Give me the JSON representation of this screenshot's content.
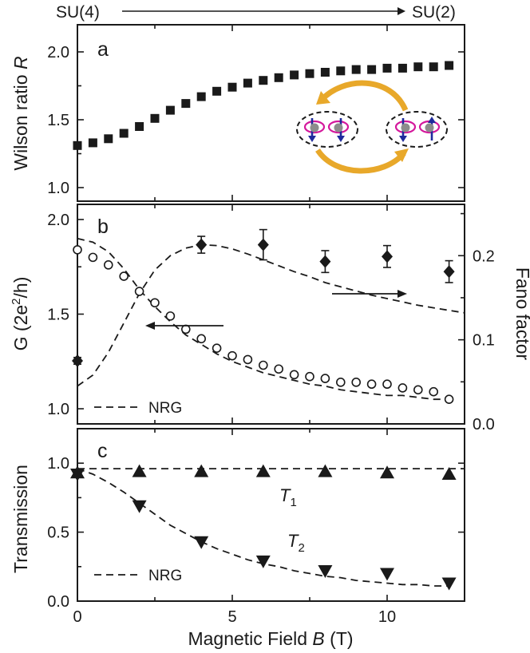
{
  "top_annotation": {
    "left": "SU(4)",
    "right": "SU(2)"
  },
  "colors": {
    "ink": "#1a1a1a",
    "orange": "#e8a82a",
    "magenta": "#d4189c",
    "blue": "#1f2a9c",
    "gray": "#8c8c8c"
  },
  "chart_data": [
    {
      "id": "a",
      "type": "scatter",
      "panel_label": "a",
      "ylabel_text": "Wilson ratio ",
      "ylabel_var": "R",
      "xlim": [
        0,
        12.5
      ],
      "ylim": [
        0.9,
        2.2
      ],
      "yticks": [
        1.0,
        1.5,
        2.0
      ],
      "ytick_labels": [
        "1.0",
        "1.5",
        "2.0"
      ],
      "xticks": [
        0,
        5,
        10
      ],
      "series": [
        {
          "name": "Wilson ratio",
          "marker": "square",
          "x": [
            0.0,
            0.5,
            1.0,
            1.5,
            2.0,
            2.5,
            3.0,
            3.5,
            4.0,
            4.5,
            5.0,
            5.5,
            6.0,
            6.5,
            7.0,
            7.5,
            8.0,
            8.5,
            9.0,
            9.5,
            10.0,
            10.5,
            11.0,
            11.5,
            12.0
          ],
          "y": [
            1.31,
            1.33,
            1.36,
            1.4,
            1.45,
            1.51,
            1.57,
            1.62,
            1.67,
            1.71,
            1.74,
            1.77,
            1.79,
            1.81,
            1.83,
            1.84,
            1.85,
            1.86,
            1.87,
            1.87,
            1.88,
            1.88,
            1.89,
            1.89,
            1.9
          ]
        }
      ]
    },
    {
      "id": "b",
      "type": "scatter",
      "panel_label": "b",
      "ylabel_text": "G (2e",
      "ylabel_sup": "2",
      "ylabel_tail": "/h)",
      "y2label": "Fano factor",
      "xlim": [
        0,
        12.5
      ],
      "ylim": [
        0.92,
        2.08
      ],
      "yticks": [
        1.0,
        1.5,
        2.0
      ],
      "ytick_labels": [
        "1.0",
        "1.5",
        "2.0"
      ],
      "y2lim": [
        0.0,
        0.261
      ],
      "y2ticks": [
        0.0,
        0.1,
        0.2
      ],
      "y2tick_labels": [
        "0.0",
        "0.1",
        "0.2"
      ],
      "legend": "NRG",
      "series": [
        {
          "name": "Conductance",
          "marker": "open-circle",
          "x": [
            0.0,
            0.5,
            1.0,
            1.5,
            2.0,
            2.5,
            3.0,
            3.5,
            4.0,
            4.5,
            5.0,
            5.5,
            6.0,
            6.5,
            7.0,
            7.5,
            8.0,
            8.5,
            9.0,
            9.5,
            10.0,
            10.5,
            11.0,
            11.5,
            12.0
          ],
          "y": [
            1.84,
            1.8,
            1.76,
            1.7,
            1.62,
            1.56,
            1.49,
            1.42,
            1.37,
            1.32,
            1.28,
            1.26,
            1.23,
            1.21,
            1.18,
            1.17,
            1.16,
            1.14,
            1.14,
            1.13,
            1.13,
            1.11,
            1.1,
            1.09,
            1.05
          ]
        },
        {
          "name": "Fano factor",
          "marker": "diamond",
          "axis": "right",
          "x": [
            0,
            4,
            6,
            8,
            10,
            12
          ],
          "y": [
            0.075,
            0.213,
            0.213,
            0.193,
            0.199,
            0.181
          ],
          "err": [
            0.004,
            0.01,
            0.018,
            0.013,
            0.013,
            0.013
          ]
        },
        {
          "name": "NRG conductance",
          "line": "dashed",
          "x": [
            0,
            0.5,
            1,
            1.5,
            2,
            2.5,
            3,
            3.5,
            4,
            4.5,
            5,
            5.5,
            6,
            6.5,
            7,
            7.5,
            8,
            8.5,
            9,
            9.5,
            10,
            10.5,
            11,
            11.5,
            12
          ],
          "y": [
            1.9,
            1.88,
            1.83,
            1.74,
            1.63,
            1.54,
            1.46,
            1.39,
            1.34,
            1.29,
            1.25,
            1.22,
            1.19,
            1.17,
            1.15,
            1.13,
            1.12,
            1.1,
            1.09,
            1.08,
            1.07,
            1.07,
            1.06,
            1.05,
            1.05
          ]
        },
        {
          "name": "NRG Fano factor",
          "line": "dashed",
          "axis": "right",
          "x": [
            0,
            0.5,
            1,
            1.5,
            2,
            2.5,
            3,
            3.5,
            4,
            4.5,
            5,
            5.5,
            6,
            6.5,
            7,
            7.5,
            8,
            8.5,
            9,
            9.5,
            10,
            10.5,
            11,
            11.5,
            12,
            12.5
          ],
          "y": [
            0.045,
            0.058,
            0.085,
            0.12,
            0.155,
            0.183,
            0.2,
            0.209,
            0.213,
            0.212,
            0.208,
            0.202,
            0.195,
            0.188,
            0.181,
            0.175,
            0.168,
            0.163,
            0.158,
            0.153,
            0.149,
            0.145,
            0.141,
            0.138,
            0.135,
            0.132
          ]
        }
      ]
    },
    {
      "id": "c",
      "type": "scatter",
      "panel_label": "c",
      "ylabel_text": "Transmission",
      "xlim": [
        0,
        12.5
      ],
      "ylim": [
        0,
        1.25
      ],
      "yticks": [
        0.0,
        0.5,
        1.0
      ],
      "ytick_labels": [
        "0.0",
        "0.5",
        "1.0"
      ],
      "xticks": [
        0,
        5,
        10
      ],
      "xtick_labels": [
        "0",
        "5",
        "10"
      ],
      "xlabel_text": "Magnetic Field ",
      "xlabel_var": "B",
      "xlabel_tail": " (T)",
      "legend": "NRG",
      "curve_labels": {
        "t1": "T",
        "t1_sub": "1",
        "t2": "T",
        "t2_sub": "2"
      },
      "series": [
        {
          "name": "T1",
          "marker": "triangle-up",
          "x": [
            0,
            2,
            4,
            6,
            8,
            10,
            12
          ],
          "y": [
            0.93,
            0.94,
            0.94,
            0.94,
            0.94,
            0.93,
            0.92
          ]
        },
        {
          "name": "T2",
          "marker": "triangle-down",
          "x": [
            0,
            2,
            4,
            6,
            8,
            10,
            12
          ],
          "y": [
            0.92,
            0.69,
            0.43,
            0.29,
            0.22,
            0.2,
            0.13
          ]
        },
        {
          "name": "NRG T1",
          "line": "dashed",
          "x": [
            0,
            12.5
          ],
          "y": [
            0.96,
            0.96
          ]
        },
        {
          "name": "NRG T2",
          "line": "dashed",
          "x": [
            0,
            0.5,
            1,
            1.5,
            2,
            2.5,
            3,
            3.5,
            4,
            4.5,
            5,
            5.5,
            6,
            6.5,
            7,
            7.5,
            8,
            8.5,
            9,
            9.5,
            10,
            10.5,
            11,
            11.5,
            12
          ],
          "y": [
            0.96,
            0.92,
            0.86,
            0.79,
            0.71,
            0.63,
            0.55,
            0.49,
            0.43,
            0.38,
            0.34,
            0.3,
            0.27,
            0.25,
            0.22,
            0.2,
            0.18,
            0.17,
            0.15,
            0.14,
            0.13,
            0.12,
            0.12,
            0.11,
            0.11
          ]
        }
      ]
    }
  ]
}
